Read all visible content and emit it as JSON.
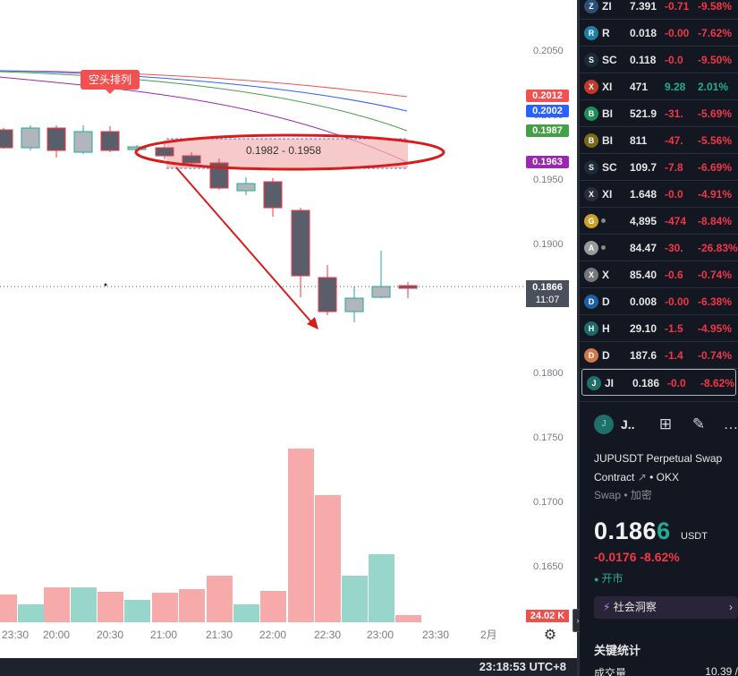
{
  "chart": {
    "y_axis_labels": [
      "0.2050",
      "0.2000",
      "0.1950",
      "0.1900",
      "0.1850",
      "0.1800",
      "0.1750",
      "0.1700",
      "0.1650"
    ],
    "x_axis_labels": [
      "23:30",
      "20:00",
      "20:30",
      "21:00",
      "21:30",
      "22:00",
      "22:30",
      "23:00",
      "23:30",
      "2月"
    ],
    "ma_tags": [
      {
        "value": "0.2012",
        "color": "#f05252"
      },
      {
        "value": "0.2002",
        "color": "#2962ff"
      },
      {
        "value": "0.1987",
        "color": "#43a047"
      },
      {
        "value": "0.1963",
        "color": "#9c27b0"
      }
    ],
    "last_price": "0.1866",
    "countdown": "11:07",
    "volume_tag": "24.02 K",
    "badge_label": "空头排列",
    "range_label": "0.1982 - 0.1958",
    "clock": "23:18:53 UTC+8",
    "colors": {
      "up": "#22ab94",
      "down": "#f23645",
      "candle_down": "#5a5e6b",
      "candle_up": "#b2b5be"
    }
  },
  "watchlist": [
    {
      "icon": "Z",
      "symbol": "ZI",
      "price": "7.391",
      "change": "-0.71",
      "pct": "-9.58%"
    },
    {
      "icon": "R",
      "symbol": "R",
      "price": "0.018",
      "change": "-0.00",
      "pct": "-7.62%"
    },
    {
      "icon": "S",
      "symbol": "SC",
      "price": "0.118",
      "change": "-0.0",
      "pct": "-9.50%"
    },
    {
      "icon": "X",
      "symbol": "XI",
      "price": "471",
      "change": "9.28",
      "pct": "2.01%",
      "up": true
    },
    {
      "icon": "B",
      "symbol": "BI",
      "price": "521.9",
      "change": "-31.",
      "pct": "-5.69%"
    },
    {
      "icon": "B",
      "symbol": "BI",
      "price": "811",
      "change": "-47.",
      "pct": "-5.56%"
    },
    {
      "icon": "S",
      "symbol": "SC",
      "price": "109.7",
      "change": "-7.8",
      "pct": "-6.69%"
    },
    {
      "icon": "X",
      "symbol": "XI",
      "price": "1.648",
      "change": "-0.0",
      "pct": "-4.91%"
    },
    {
      "icon": "G",
      "symbol": "",
      "price": "4,895",
      "change": "-474",
      "pct": "-8.84%",
      "dot": true
    },
    {
      "icon": "A",
      "symbol": "",
      "price": "84.47",
      "change": "-30.",
      "pct": "-26.83%",
      "dot": true
    },
    {
      "icon": "X",
      "symbol": "X",
      "price": "85.40",
      "change": "-0.6",
      "pct": "-0.74%"
    },
    {
      "icon": "D",
      "symbol": "D",
      "price": "0.008",
      "change": "-0.00",
      "pct": "-6.38%"
    },
    {
      "icon": "H",
      "symbol": "H",
      "price": "29.10",
      "change": "-1.5",
      "pct": "-4.95%"
    },
    {
      "icon": "D",
      "symbol": "D",
      "price": "187.6",
      "change": "-1.4",
      "pct": "-0.74%"
    },
    {
      "icon": "J",
      "symbol": "JI",
      "price": "0.186",
      "change": "-0.0",
      "pct": "-8.62%",
      "active": true
    }
  ],
  "details": {
    "symbol_short": "J..",
    "logo": "J",
    "name": "JUPUSDT Perpetual Swap Contract",
    "exchange": "OKX",
    "sub": "Swap • 加密",
    "price_main": "0.186",
    "price_tail": "6",
    "unit": "USDT",
    "change": "-0.0176  -8.62%",
    "market_status": "开市",
    "social_label": "社会洞察",
    "key_stats_label": "关键统计",
    "volume_label": "成交量",
    "volume_value": "10.39 /"
  }
}
